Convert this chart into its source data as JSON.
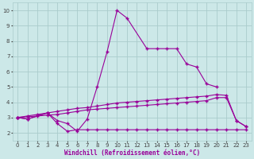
{
  "xlabel": "Windchill (Refroidissement éolien,°C)",
  "bg_color": "#cce8e8",
  "line_color": "#990099",
  "grid_color": "#aacccc",
  "ylim": [
    1.5,
    10.5
  ],
  "xlim": [
    -0.5,
    23.5
  ],
  "line1_x": [
    0,
    1,
    3,
    4,
    5,
    6,
    7,
    8,
    9,
    10,
    11,
    13,
    14,
    15,
    16,
    17,
    18,
    19,
    20
  ],
  "line1_y": [
    3.0,
    2.9,
    3.3,
    2.8,
    2.6,
    2.1,
    2.9,
    5.0,
    7.3,
    10.0,
    9.5,
    7.5,
    7.5,
    7.5,
    7.5,
    6.5,
    6.3,
    5.2,
    5.0
  ],
  "line2_x": [
    0,
    1,
    3,
    4,
    5,
    6,
    7,
    8,
    9,
    10,
    11,
    12,
    13,
    14,
    15,
    16,
    17,
    18,
    19,
    20,
    21,
    22,
    23
  ],
  "line2_y": [
    3.0,
    2.9,
    3.3,
    2.6,
    2.1,
    2.2,
    2.2,
    2.2,
    2.2,
    2.2,
    2.2,
    2.2,
    2.2,
    2.2,
    2.2,
    2.2,
    2.2,
    2.2,
    2.2,
    2.2,
    2.2,
    2.2,
    2.2
  ],
  "line3_x": [
    0,
    1,
    2,
    3,
    4,
    5,
    6,
    7,
    8,
    9,
    10,
    11,
    12,
    13,
    14,
    15,
    16,
    17,
    18,
    19,
    20,
    21,
    22,
    23
  ],
  "line3_y": [
    3.0,
    3.1,
    3.2,
    3.3,
    3.4,
    3.5,
    3.6,
    3.65,
    3.75,
    3.85,
    3.95,
    4.0,
    4.05,
    4.1,
    4.15,
    4.2,
    4.25,
    4.3,
    4.35,
    4.4,
    4.5,
    4.45,
    2.8,
    2.4
  ],
  "line4_x": [
    0,
    1,
    2,
    3,
    4,
    5,
    6,
    7,
    8,
    9,
    10,
    11,
    12,
    13,
    14,
    15,
    16,
    17,
    18,
    19,
    20,
    21,
    22,
    23
  ],
  "line4_y": [
    3.0,
    3.05,
    3.1,
    3.15,
    3.2,
    3.3,
    3.4,
    3.5,
    3.55,
    3.6,
    3.65,
    3.7,
    3.75,
    3.8,
    3.85,
    3.9,
    3.95,
    4.0,
    4.05,
    4.1,
    4.3,
    4.3,
    2.8,
    2.4
  ]
}
